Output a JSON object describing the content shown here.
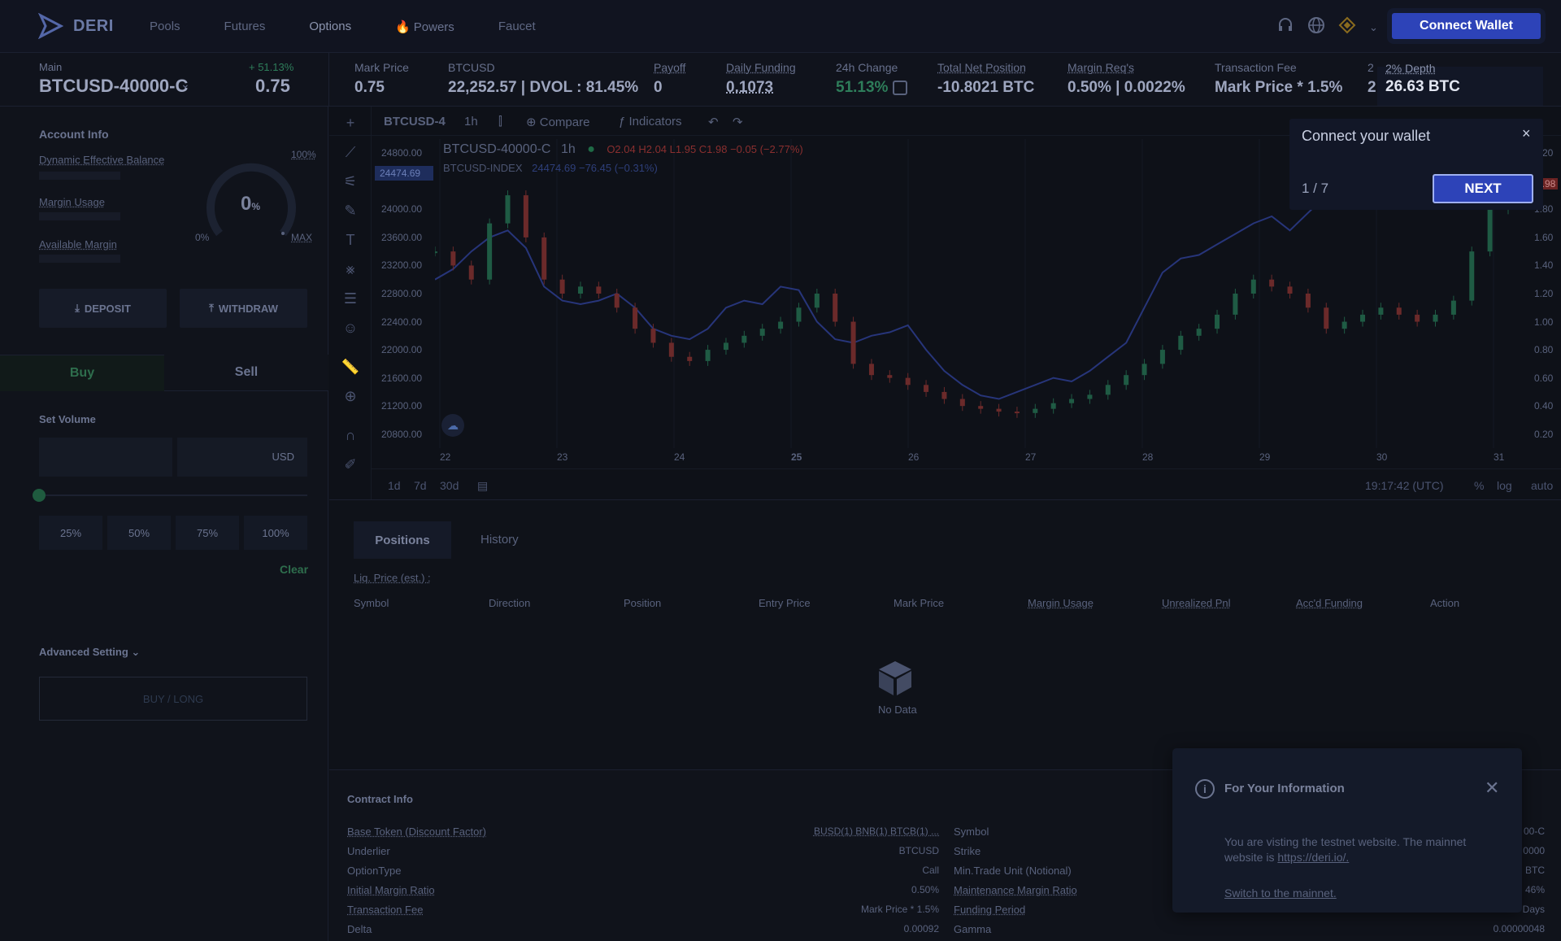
{
  "header": {
    "logo_text": "DERI",
    "nav": [
      "Pools",
      "Futures",
      "Options",
      "Powers",
      "Faucet"
    ],
    "connect_wallet": "Connect Wallet"
  },
  "ticker": {
    "main_label": "Main",
    "symbol": "BTCUSD-40000-C",
    "change_small": "+ 51.13%",
    "price_big": "0.75",
    "items": [
      {
        "label": "Mark Price",
        "value": "0.75"
      },
      {
        "label": "BTCUSD",
        "value": "22,252.57 | DVOL : 81.45%"
      },
      {
        "label": "Payoff",
        "value": "0"
      },
      {
        "label": "Daily Funding",
        "value": "0.1073"
      },
      {
        "label": "24h Change",
        "value": "51.13%"
      },
      {
        "label": "Total Net Position",
        "value": "-10.8021 BTC"
      },
      {
        "label": "Margin Req's",
        "value": "0.50% | 0.0022%"
      },
      {
        "label": "Transaction Fee",
        "value": "Mark Price * 1.5%"
      },
      {
        "label": "2% Depth",
        "value": "26.63 BTC"
      }
    ],
    "depth_peek_label": "2",
    "depth_peek_value": "2"
  },
  "account": {
    "title": "Account Info",
    "dynamic_balance": "Dynamic Effective Balance",
    "margin_usage": "Margin Usage",
    "available_margin": "Available Margin",
    "gauge_value": "0",
    "gauge_unit": "%",
    "gauge_100": "100%",
    "gauge_0": "0%",
    "gauge_max": "MAX",
    "deposit": "DEPOSIT",
    "withdraw": "WITHDRAW"
  },
  "trade": {
    "buy": "Buy",
    "sell": "Sell",
    "set_volume": "Set Volume",
    "currency": "USD",
    "pcts": [
      "25%",
      "50%",
      "75%",
      "100%"
    ],
    "clear": "Clear",
    "advanced": "Advanced Setting",
    "buy_long": "BUY / LONG"
  },
  "chart_toolbar": {
    "symbol": "BTCUSD-4",
    "interval": "1h",
    "compare": "Compare",
    "indicators": "Indicators"
  },
  "chart_data": {
    "type": "line",
    "legend_main": "BTCUSD-40000-C",
    "legend_interval": "1h",
    "ohlc": "O2.04 H2.04 L1.95 C1.98 −0.05 (−2.77%)",
    "index_name": "BTCUSD-INDEX",
    "index_value": "24474.69 −76.45 (−0.31%)",
    "index_tag": "24474.69",
    "y_left_ticks": [
      "24800.00",
      "24000.00",
      "23600.00",
      "23200.00",
      "22800.00",
      "22400.00",
      "22000.00",
      "21600.00",
      "21200.00",
      "20800.00"
    ],
    "y_right_ticks": [
      "2.20",
      "1.98",
      "1.80",
      "1.60",
      "1.40",
      "1.20",
      "1.00",
      "0.80",
      "0.60",
      "0.40",
      "0.20"
    ],
    "x_ticks": [
      "22",
      "23",
      "24",
      "25",
      "26",
      "27",
      "28",
      "29",
      "30",
      "31"
    ],
    "index_series": [
      23000,
      23150,
      23400,
      23600,
      23700,
      23450,
      22900,
      22700,
      22650,
      22700,
      22800,
      22600,
      22300,
      22200,
      22150,
      22300,
      22600,
      22700,
      22650,
      22900,
      22850,
      22400,
      22150,
      22100,
      22200,
      22250,
      22350,
      22000,
      21700,
      21500,
      21350,
      21300,
      21400,
      21500,
      21600,
      21550,
      21700,
      21900,
      22100,
      22600,
      23100,
      23300,
      23350,
      23500,
      23650,
      23800,
      23900,
      23700,
      23950,
      24200,
      24500,
      24600,
      24650,
      24500,
      24700,
      24600,
      24500,
      24550,
      24600,
      24800
    ],
    "price_series": [
      1.5,
      1.4,
      1.3,
      1.7,
      1.9,
      1.6,
      1.3,
      1.2,
      1.25,
      1.2,
      1.1,
      0.95,
      0.85,
      0.75,
      0.72,
      0.8,
      0.85,
      0.9,
      0.95,
      1.0,
      1.1,
      1.2,
      1.0,
      0.7,
      0.62,
      0.6,
      0.55,
      0.5,
      0.45,
      0.4,
      0.38,
      0.36,
      0.35,
      0.38,
      0.42,
      0.45,
      0.48,
      0.55,
      0.62,
      0.7,
      0.8,
      0.9,
      0.95,
      1.05,
      1.2,
      1.3,
      1.25,
      1.2,
      1.1,
      0.95,
      1.0,
      1.05,
      1.1,
      1.05,
      1.0,
      1.05,
      1.15,
      1.5,
      1.8,
      1.98
    ],
    "bottom_ranges": [
      "1d",
      "7d",
      "30d"
    ],
    "time": "19:17:42 (UTC)",
    "options": [
      "%",
      "log",
      "auto"
    ]
  },
  "positions": {
    "tab_positions": "Positions",
    "tab_history": "History",
    "liq": "Liq. Price (est.) :",
    "columns": [
      "Symbol",
      "Direction",
      "Position",
      "Entry Price",
      "Mark Price",
      "Margin Usage",
      "Unrealized Pnl",
      "Acc'd Funding",
      "Action"
    ],
    "no_data": "No Data"
  },
  "contract": {
    "title": "Contract Info",
    "left": [
      {
        "label": "Base Token (Discount Factor)",
        "value": "BUSD(1) BNB(1) BTCB(1) ..."
      },
      {
        "label": "Underlier",
        "value": "BTCUSD"
      },
      {
        "label": "OptionType",
        "value": "Call"
      },
      {
        "label": "Initial Margin Ratio",
        "value": "0.50%"
      },
      {
        "label": "Transaction Fee",
        "value": "Mark Price * 1.5%"
      },
      {
        "label": "Delta",
        "value": "0.00092"
      }
    ],
    "right": [
      {
        "label": "Symbol",
        "value": "00-C"
      },
      {
        "label": "Strike",
        "value": "0000"
      },
      {
        "label": "Min.Trade Unit (Notional)",
        "value": "BTC"
      },
      {
        "label": "Maintenance Margin Ratio",
        "value": "46%"
      },
      {
        "label": "Funding Period",
        "value": "Days"
      },
      {
        "label": "Gamma",
        "value": "0.00000048"
      }
    ]
  },
  "wallet_popup": {
    "title": "Connect your wallet",
    "close": "×",
    "step": "1 / 7",
    "next": "NEXT"
  },
  "info_toast": {
    "title": "For Your Information",
    "body": "You are visting the testnet website. The mainnet website is",
    "link": "https://deri.io/.",
    "switch": "Switch to the mainnet."
  }
}
